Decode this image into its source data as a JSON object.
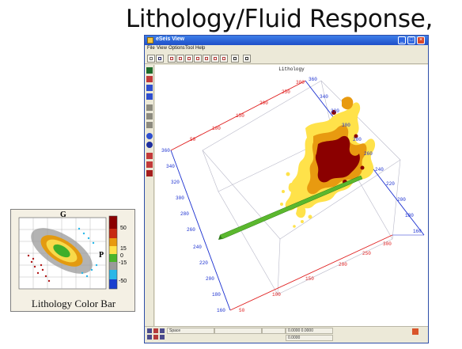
{
  "slide": {
    "title": "Lithology/Fluid Response, Surface"
  },
  "legend": {
    "caption": "Lithology Color Bar",
    "axis_g": "G",
    "axis_p": "P",
    "scale_labels": [
      "50",
      "15",
      "0",
      "-15",
      "-50"
    ]
  },
  "window": {
    "title": "eSeis View",
    "menu": [
      "File",
      "View",
      "Options",
      "Tool",
      "Help"
    ],
    "controls": {
      "minimize": "_",
      "maximize": "□",
      "close": "×"
    }
  },
  "viewport": {
    "label": "Lithology",
    "tick_labels_red": [
      "50",
      "100",
      "150",
      "200",
      "250",
      "300"
    ],
    "tick_labels_blue_right": [
      "360",
      "340",
      "320",
      "300",
      "280",
      "260",
      "240",
      "220",
      "200",
      "180",
      "160"
    ],
    "tick_labels_blue_left": [
      "360",
      "340",
      "320",
      "300",
      "280",
      "260",
      "240",
      "220",
      "200",
      "180",
      "160"
    ],
    "tick_labels_red_bottom": [
      "50",
      "100",
      "150",
      "200",
      "250",
      "300"
    ]
  },
  "status": {
    "mode": "Space",
    "coord_a": "0.0000  0.0000",
    "coord_b": "0.0000"
  },
  "colors": {
    "surface_dark": "#8b0000",
    "surface_mid": "#e89a10",
    "surface_light": "#ffe24a",
    "plane": "#5bb82e",
    "axis_red": "#e02020",
    "axis_blue": "#1a2fd0"
  }
}
